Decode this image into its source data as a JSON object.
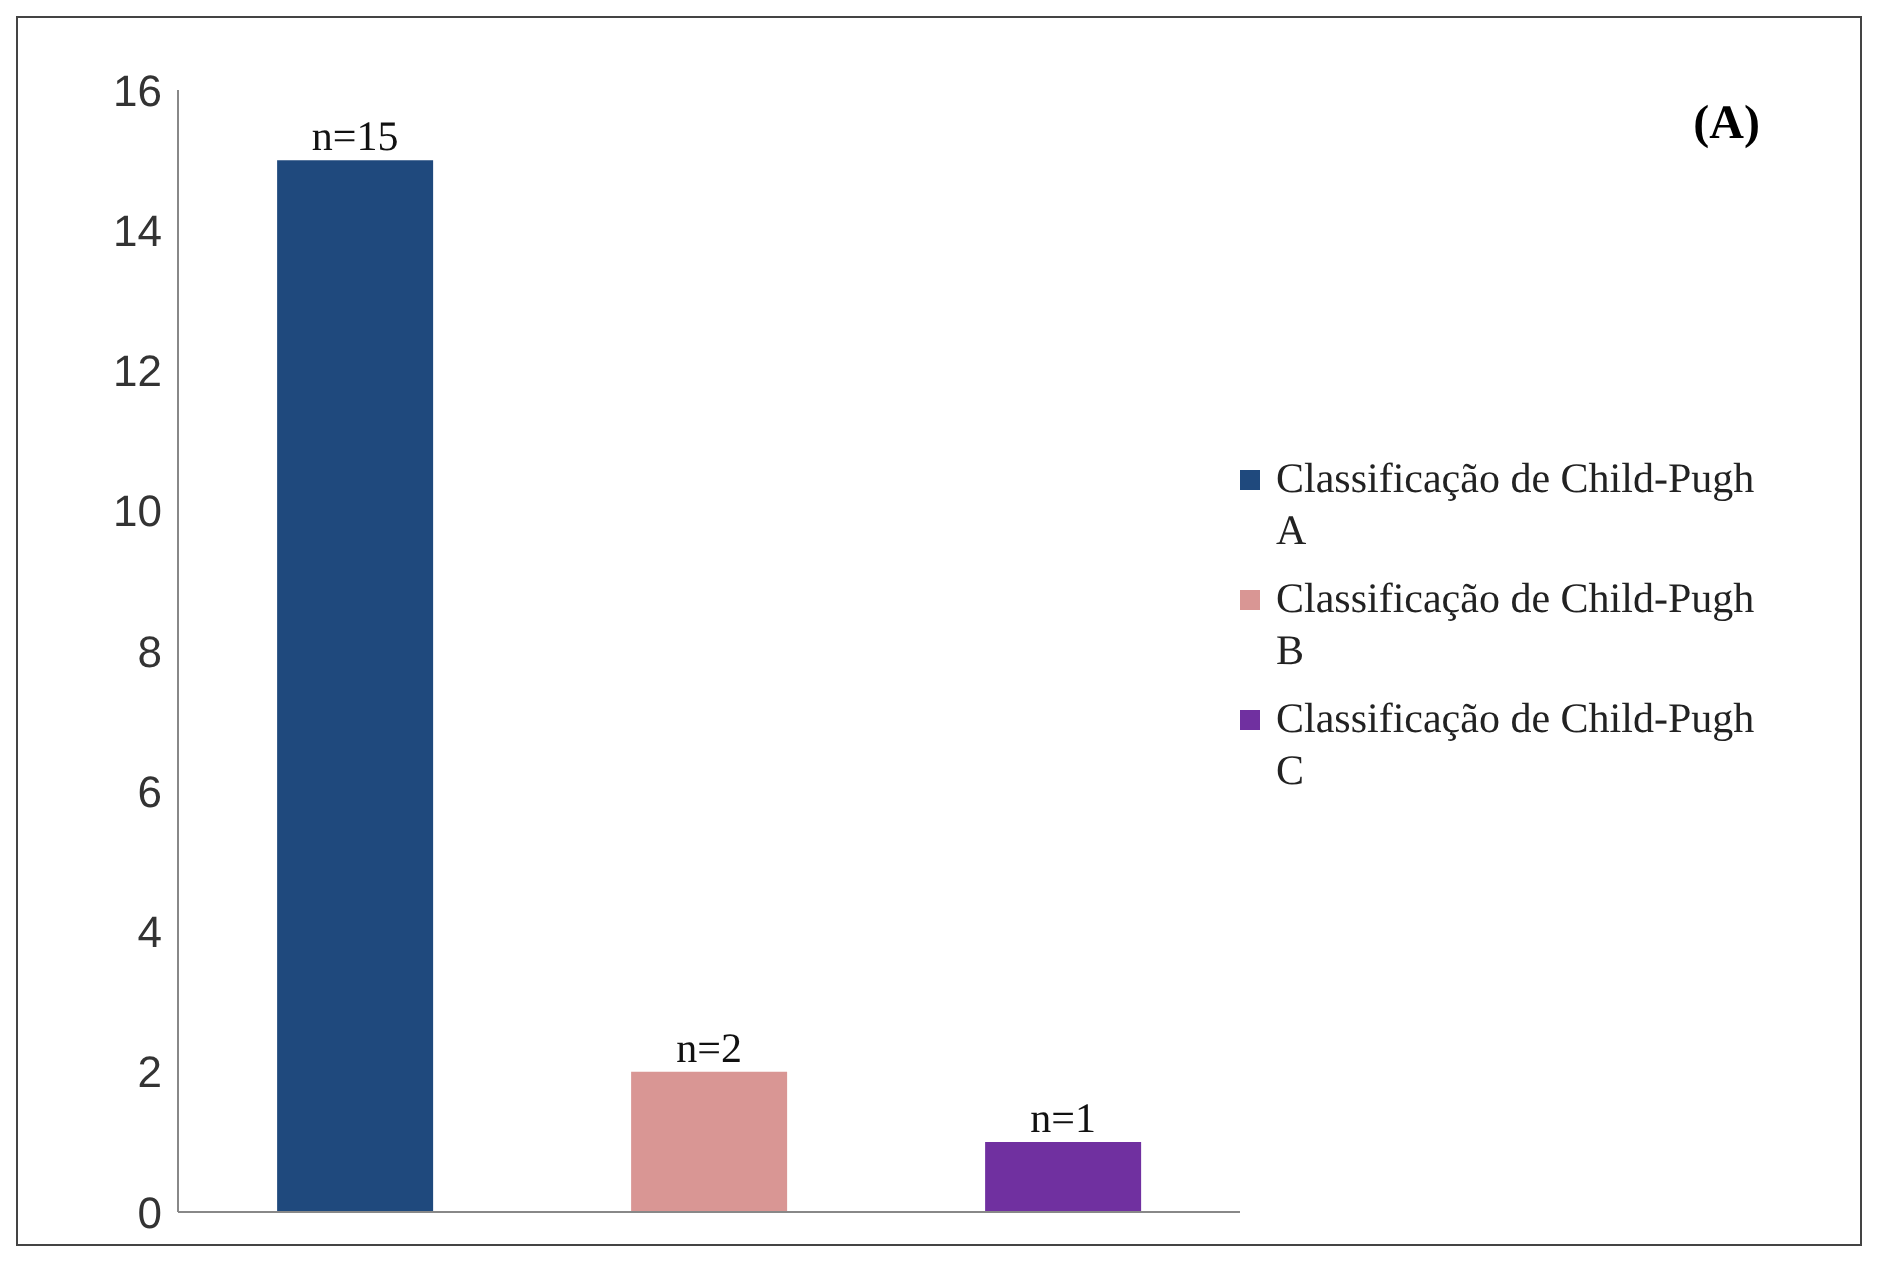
{
  "chart_data": {
    "type": "bar",
    "categories": [
      null,
      null,
      null
    ],
    "series": [
      {
        "name": "Classificação de Child-Pugh A",
        "color": "#1f497d",
        "values": [
          15,
          null,
          null
        ],
        "value_labels": [
          "n=15",
          null,
          null
        ]
      },
      {
        "name": "Classificação de Child-Pugh B",
        "color": "#d99694",
        "values": [
          null,
          2,
          null
        ],
        "value_labels": [
          null,
          "n=2",
          null
        ]
      },
      {
        "name": "Classificação de Child-Pugh C",
        "color": "#7030a0",
        "values": [
          null,
          null,
          1
        ],
        "value_labels": [
          null,
          null,
          "n=1"
        ]
      }
    ],
    "ylim": [
      0,
      16
    ],
    "yticks": [
      0,
      2,
      4,
      6,
      8,
      10,
      12,
      14,
      16
    ],
    "grid": false,
    "legend": "right",
    "annotations": [
      "(A)"
    ]
  }
}
